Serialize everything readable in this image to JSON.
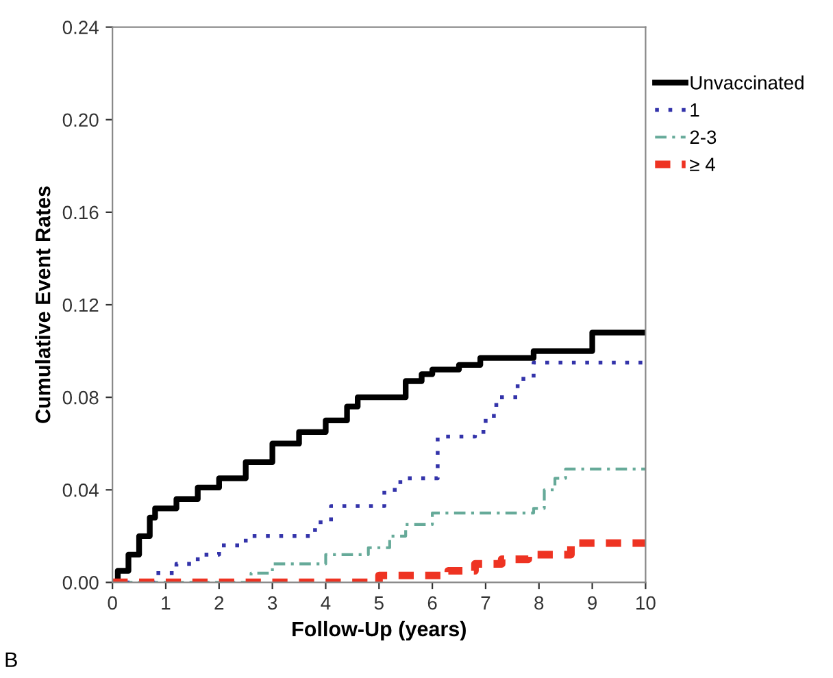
{
  "chart_data": {
    "type": "step",
    "xlabel": "Follow-Up (years)",
    "ylabel": "Cumulative Event Rates",
    "annotations": [
      "B"
    ],
    "xlim": [
      0,
      10
    ],
    "ylim": [
      0,
      0.24
    ],
    "xticks": [
      0,
      1,
      2,
      3,
      4,
      5,
      6,
      7,
      8,
      9,
      10
    ],
    "yticks": [
      {
        "value": 0,
        "label": "0.00"
      },
      {
        "value": 0.04,
        "label": "0.04"
      },
      {
        "value": 0.08,
        "label": "0.08"
      },
      {
        "value": 0.12,
        "label": "0.12"
      },
      {
        "value": 0.16,
        "label": "0.16"
      },
      {
        "value": 0.2,
        "label": "0.20"
      },
      {
        "value": 0.24,
        "label": "0.24"
      }
    ],
    "grid": false,
    "legend": "top right",
    "series": [
      {
        "name": "Unvaccinated",
        "color": "#000000",
        "line_style": "solid",
        "x": [
          0,
          0.1,
          0.3,
          0.5,
          0.7,
          0.8,
          1.2,
          1.6,
          2.0,
          2.5,
          3.0,
          3.5,
          4.0,
          4.4,
          4.6,
          5.2,
          5.5,
          5.8,
          6.0,
          6.5,
          6.9,
          7.9,
          9.0,
          10
        ],
        "values": [
          0,
          0.005,
          0.012,
          0.02,
          0.028,
          0.032,
          0.036,
          0.041,
          0.045,
          0.052,
          0.06,
          0.065,
          0.07,
          0.076,
          0.08,
          0.08,
          0.087,
          0.09,
          0.092,
          0.094,
          0.097,
          0.1,
          0.108,
          0.108
        ]
      },
      {
        "name": "1",
        "color": "#3333aa",
        "line_style": "dotted",
        "x": [
          0,
          0.5,
          0.8,
          1.2,
          1.6,
          2.0,
          2.5,
          3.5,
          3.8,
          4.1,
          4.8,
          5.1,
          5.4,
          5.9,
          6.1,
          6.8,
          7.0,
          7.2,
          7.6,
          7.9,
          10
        ],
        "values": [
          0,
          0,
          0.004,
          0.008,
          0.012,
          0.016,
          0.02,
          0.02,
          0.026,
          0.033,
          0.033,
          0.04,
          0.045,
          0.045,
          0.063,
          0.065,
          0.072,
          0.08,
          0.088,
          0.095,
          0.095
        ]
      },
      {
        "name": "2-3",
        "color": "#66aa99",
        "line_style": "dashdot",
        "x": [
          0,
          2.0,
          2.6,
          3.0,
          4.0,
          4.8,
          5.2,
          5.5,
          6.0,
          7.9,
          8.1,
          8.3,
          8.5,
          10
        ],
        "values": [
          0,
          0,
          0.004,
          0.008,
          0.012,
          0.015,
          0.02,
          0.025,
          0.03,
          0.032,
          0.04,
          0.045,
          0.049,
          0.049
        ]
      },
      {
        "name": "≥ 4",
        "color": "#ee3322",
        "line_style": "dashed",
        "x": [
          0,
          4.5,
          5.0,
          6.3,
          6.8,
          7.3,
          7.8,
          8.6,
          10
        ],
        "values": [
          0,
          0,
          0.003,
          0.005,
          0.008,
          0.01,
          0.012,
          0.017,
          0.017
        ]
      }
    ]
  }
}
